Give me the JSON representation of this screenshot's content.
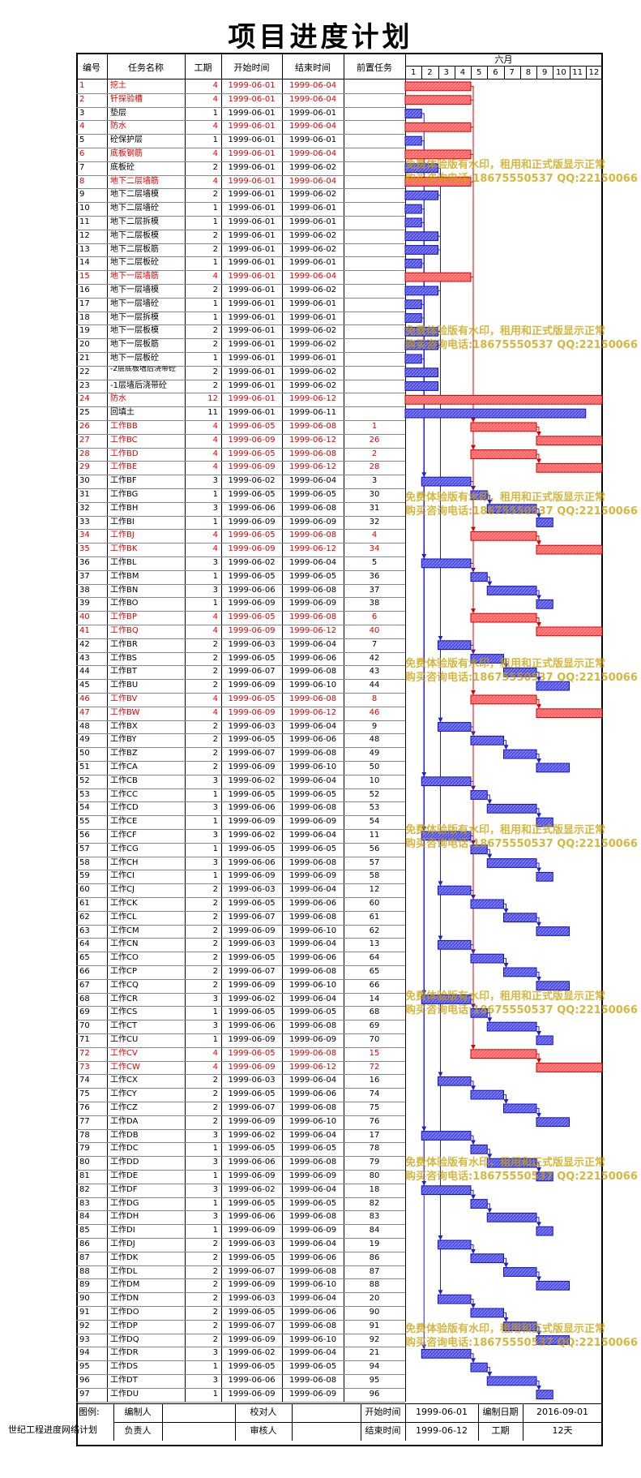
{
  "title": "项目进度计划",
  "headers": {
    "id": "编号",
    "name": "任务名称",
    "duration": "工期",
    "start": "开始时间",
    "end": "结束时间",
    "pred": "前置任务",
    "month": "六月",
    "days": [
      "1",
      "2",
      "3",
      "4",
      "5",
      "6",
      "7",
      "8",
      "9",
      "10",
      "11",
      "12"
    ]
  },
  "footer": {
    "legend_label": "图例:",
    "compiler_label": "编制人",
    "checker_label": "校对人",
    "start_label": "开始时间",
    "start_value": "1999-06-01",
    "compile_date_label": "编制日期",
    "compile_date_value": "2016-09-01",
    "responsible_label": "负责人",
    "reviewer_label": "审核人",
    "end_label": "结束时间",
    "end_value": "1999-06-12",
    "duration_label": "工期",
    "duration_value": "12天",
    "side_label": "世纪工程进度网络计划"
  },
  "watermark": {
    "line1": "免费体验版有水印，租用和正式版显示正常",
    "line2": "购买咨询电话:18675550537 QQ:22150066"
  },
  "colors": {
    "critical": "#ff6060",
    "normal": "#5050e8",
    "critical_text": "#e00000"
  },
  "chart_data": {
    "type": "gantt",
    "title": "项目进度计划",
    "x_axis": {
      "label": "六月",
      "ticks": [
        "1",
        "2",
        "3",
        "4",
        "5",
        "6",
        "7",
        "8",
        "9",
        "10",
        "11",
        "12"
      ]
    },
    "tasks": [
      {
        "id": "1",
        "name": "挖土",
        "dur": 4,
        "start": "1999-06-01",
        "end": "1999-06-04",
        "pred": "",
        "critical": true
      },
      {
        "id": "2",
        "name": "钎探验槽",
        "dur": 4,
        "start": "1999-06-01",
        "end": "1999-06-04",
        "pred": "",
        "critical": true
      },
      {
        "id": "3",
        "name": "垫层",
        "dur": 1,
        "start": "1999-06-01",
        "end": "1999-06-01",
        "pred": "",
        "critical": false
      },
      {
        "id": "4",
        "name": "防水",
        "dur": 4,
        "start": "1999-06-01",
        "end": "1999-06-04",
        "pred": "",
        "critical": true
      },
      {
        "id": "5",
        "name": "砼保护层",
        "dur": 1,
        "start": "1999-06-01",
        "end": "1999-06-01",
        "pred": "",
        "critical": false
      },
      {
        "id": "6",
        "name": "底板钢筋",
        "dur": 4,
        "start": "1999-06-01",
        "end": "1999-06-04",
        "pred": "",
        "critical": true
      },
      {
        "id": "7",
        "name": "底板砼",
        "dur": 2,
        "start": "1999-06-01",
        "end": "1999-06-02",
        "pred": "",
        "critical": false
      },
      {
        "id": "8",
        "name": "地下二层墙筋",
        "dur": 4,
        "start": "1999-06-01",
        "end": "1999-06-04",
        "pred": "",
        "critical": true
      },
      {
        "id": "9",
        "name": "地下二层墙模",
        "dur": 2,
        "start": "1999-06-01",
        "end": "1999-06-02",
        "pred": "",
        "critical": false
      },
      {
        "id": "10",
        "name": "地下二层墙砼",
        "dur": 1,
        "start": "1999-06-01",
        "end": "1999-06-01",
        "pred": "",
        "critical": false
      },
      {
        "id": "11",
        "name": "地下二层拆模",
        "dur": 1,
        "start": "1999-06-01",
        "end": "1999-06-01",
        "pred": "",
        "critical": false
      },
      {
        "id": "12",
        "name": "地下二层板模",
        "dur": 2,
        "start": "1999-06-01",
        "end": "1999-06-02",
        "pred": "",
        "critical": false
      },
      {
        "id": "13",
        "name": "地下二层板筋",
        "dur": 2,
        "start": "1999-06-01",
        "end": "1999-06-02",
        "pred": "",
        "critical": false
      },
      {
        "id": "14",
        "name": "地下二层板砼",
        "dur": 1,
        "start": "1999-06-01",
        "end": "1999-06-01",
        "pred": "",
        "critical": false
      },
      {
        "id": "15",
        "name": "地下一层墙筋",
        "dur": 4,
        "start": "1999-06-01",
        "end": "1999-06-04",
        "pred": "",
        "critical": true
      },
      {
        "id": "16",
        "name": "地下一层墙模",
        "dur": 2,
        "start": "1999-06-01",
        "end": "1999-06-02",
        "pred": "",
        "critical": false
      },
      {
        "id": "17",
        "name": "地下一层墙砼",
        "dur": 1,
        "start": "1999-06-01",
        "end": "1999-06-01",
        "pred": "",
        "critical": false
      },
      {
        "id": "18",
        "name": "地下一层拆模",
        "dur": 1,
        "start": "1999-06-01",
        "end": "1999-06-01",
        "pred": "",
        "critical": false
      },
      {
        "id": "19",
        "name": "地下一层板模",
        "dur": 2,
        "start": "1999-06-01",
        "end": "1999-06-02",
        "pred": "",
        "critical": false
      },
      {
        "id": "20",
        "name": "地下一层板筋",
        "dur": 2,
        "start": "1999-06-01",
        "end": "1999-06-02",
        "pred": "",
        "critical": false
      },
      {
        "id": "21",
        "name": "地下一层板砼",
        "dur": 1,
        "start": "1999-06-01",
        "end": "1999-06-01",
        "pred": "",
        "critical": false
      },
      {
        "id": "22",
        "name": "-2层底板墙后浇带砼",
        "dur": 2,
        "start": "1999-06-01",
        "end": "1999-06-02",
        "pred": "",
        "critical": false
      },
      {
        "id": "23",
        "name": "-1层墙后浇带砼",
        "dur": 2,
        "start": "1999-06-01",
        "end": "1999-06-02",
        "pred": "",
        "critical": false
      },
      {
        "id": "24",
        "name": "防水",
        "dur": 12,
        "start": "1999-06-01",
        "end": "1999-06-12",
        "pred": "",
        "critical": true
      },
      {
        "id": "25",
        "name": "回填土",
        "dur": 11,
        "start": "1999-06-01",
        "end": "1999-06-11",
        "pred": "",
        "critical": false
      },
      {
        "id": "26",
        "name": "工作BB",
        "dur": 4,
        "start": "1999-06-05",
        "end": "1999-06-08",
        "pred": "1",
        "critical": true
      },
      {
        "id": "27",
        "name": "工作BC",
        "dur": 4,
        "start": "1999-06-09",
        "end": "1999-06-12",
        "pred": "26",
        "critical": true
      },
      {
        "id": "28",
        "name": "工作BD",
        "dur": 4,
        "start": "1999-06-05",
        "end": "1999-06-08",
        "pred": "2",
        "critical": true
      },
      {
        "id": "29",
        "name": "工作BE",
        "dur": 4,
        "start": "1999-06-09",
        "end": "1999-06-12",
        "pred": "28",
        "critical": true
      },
      {
        "id": "30",
        "name": "工作BF",
        "dur": 3,
        "start": "1999-06-02",
        "end": "1999-06-04",
        "pred": "3",
        "critical": false
      },
      {
        "id": "31",
        "name": "工作BG",
        "dur": 1,
        "start": "1999-06-05",
        "end": "1999-06-05",
        "pred": "30",
        "critical": false
      },
      {
        "id": "32",
        "name": "工作BH",
        "dur": 3,
        "start": "1999-06-06",
        "end": "1999-06-08",
        "pred": "31",
        "critical": false
      },
      {
        "id": "33",
        "name": "工作BI",
        "dur": 1,
        "start": "1999-06-09",
        "end": "1999-06-09",
        "pred": "32",
        "critical": false
      },
      {
        "id": "34",
        "name": "工作BJ",
        "dur": 4,
        "start": "1999-06-05",
        "end": "1999-06-08",
        "pred": "4",
        "critical": true
      },
      {
        "id": "35",
        "name": "工作BK",
        "dur": 4,
        "start": "1999-06-09",
        "end": "1999-06-12",
        "pred": "34",
        "critical": true
      },
      {
        "id": "36",
        "name": "工作BL",
        "dur": 3,
        "start": "1999-06-02",
        "end": "1999-06-04",
        "pred": "5",
        "critical": false
      },
      {
        "id": "37",
        "name": "工作BM",
        "dur": 1,
        "start": "1999-06-05",
        "end": "1999-06-05",
        "pred": "36",
        "critical": false
      },
      {
        "id": "38",
        "name": "工作BN",
        "dur": 3,
        "start": "1999-06-06",
        "end": "1999-06-08",
        "pred": "37",
        "critical": false
      },
      {
        "id": "39",
        "name": "工作BO",
        "dur": 1,
        "start": "1999-06-09",
        "end": "1999-06-09",
        "pred": "38",
        "critical": false
      },
      {
        "id": "40",
        "name": "工作BP",
        "dur": 4,
        "start": "1999-06-05",
        "end": "1999-06-08",
        "pred": "6",
        "critical": true
      },
      {
        "id": "41",
        "name": "工作BQ",
        "dur": 4,
        "start": "1999-06-09",
        "end": "1999-06-12",
        "pred": "40",
        "critical": true
      },
      {
        "id": "42",
        "name": "工作BR",
        "dur": 2,
        "start": "1999-06-03",
        "end": "1999-06-04",
        "pred": "7",
        "critical": false
      },
      {
        "id": "43",
        "name": "工作BS",
        "dur": 2,
        "start": "1999-06-05",
        "end": "1999-06-06",
        "pred": "42",
        "critical": false
      },
      {
        "id": "44",
        "name": "工作BT",
        "dur": 2,
        "start": "1999-06-07",
        "end": "1999-06-08",
        "pred": "43",
        "critical": false
      },
      {
        "id": "45",
        "name": "工作BU",
        "dur": 2,
        "start": "1999-06-09",
        "end": "1999-06-10",
        "pred": "44",
        "critical": false
      },
      {
        "id": "46",
        "name": "工作BV",
        "dur": 4,
        "start": "1999-06-05",
        "end": "1999-06-08",
        "pred": "8",
        "critical": true
      },
      {
        "id": "47",
        "name": "工作BW",
        "dur": 4,
        "start": "1999-06-09",
        "end": "1999-06-12",
        "pred": "46",
        "critical": true
      },
      {
        "id": "48",
        "name": "工作BX",
        "dur": 2,
        "start": "1999-06-03",
        "end": "1999-06-04",
        "pred": "9",
        "critical": false
      },
      {
        "id": "49",
        "name": "工作BY",
        "dur": 2,
        "start": "1999-06-05",
        "end": "1999-06-06",
        "pred": "48",
        "critical": false
      },
      {
        "id": "50",
        "name": "工作BZ",
        "dur": 2,
        "start": "1999-06-07",
        "end": "1999-06-08",
        "pred": "49",
        "critical": false
      },
      {
        "id": "51",
        "name": "工作CA",
        "dur": 2,
        "start": "1999-06-09",
        "end": "1999-06-10",
        "pred": "50",
        "critical": false
      },
      {
        "id": "52",
        "name": "工作CB",
        "dur": 3,
        "start": "1999-06-02",
        "end": "1999-06-04",
        "pred": "10",
        "critical": false
      },
      {
        "id": "53",
        "name": "工作CC",
        "dur": 1,
        "start": "1999-06-05",
        "end": "1999-06-05",
        "pred": "52",
        "critical": false
      },
      {
        "id": "54",
        "name": "工作CD",
        "dur": 3,
        "start": "1999-06-06",
        "end": "1999-06-08",
        "pred": "53",
        "critical": false
      },
      {
        "id": "55",
        "name": "工作CE",
        "dur": 1,
        "start": "1999-06-09",
        "end": "1999-06-09",
        "pred": "54",
        "critical": false
      },
      {
        "id": "56",
        "name": "工作CF",
        "dur": 3,
        "start": "1999-06-02",
        "end": "1999-06-04",
        "pred": "11",
        "critical": false
      },
      {
        "id": "57",
        "name": "工作CG",
        "dur": 1,
        "start": "1999-06-05",
        "end": "1999-06-05",
        "pred": "56",
        "critical": false
      },
      {
        "id": "58",
        "name": "工作CH",
        "dur": 3,
        "start": "1999-06-06",
        "end": "1999-06-08",
        "pred": "57",
        "critical": false
      },
      {
        "id": "59",
        "name": "工作CI",
        "dur": 1,
        "start": "1999-06-09",
        "end": "1999-06-09",
        "pred": "58",
        "critical": false
      },
      {
        "id": "60",
        "name": "工作CJ",
        "dur": 2,
        "start": "1999-06-03",
        "end": "1999-06-04",
        "pred": "12",
        "critical": false
      },
      {
        "id": "61",
        "name": "工作CK",
        "dur": 2,
        "start": "1999-06-05",
        "end": "1999-06-06",
        "pred": "60",
        "critical": false
      },
      {
        "id": "62",
        "name": "工作CL",
        "dur": 2,
        "start": "1999-06-07",
        "end": "1999-06-08",
        "pred": "61",
        "critical": false
      },
      {
        "id": "63",
        "name": "工作CM",
        "dur": 2,
        "start": "1999-06-09",
        "end": "1999-06-10",
        "pred": "62",
        "critical": false
      },
      {
        "id": "64",
        "name": "工作CN",
        "dur": 2,
        "start": "1999-06-03",
        "end": "1999-06-04",
        "pred": "13",
        "critical": false
      },
      {
        "id": "65",
        "name": "工作CO",
        "dur": 2,
        "start": "1999-06-05",
        "end": "1999-06-06",
        "pred": "64",
        "critical": false
      },
      {
        "id": "66",
        "name": "工作CP",
        "dur": 2,
        "start": "1999-06-07",
        "end": "1999-06-08",
        "pred": "65",
        "critical": false
      },
      {
        "id": "67",
        "name": "工作CQ",
        "dur": 2,
        "start": "1999-06-09",
        "end": "1999-06-10",
        "pred": "66",
        "critical": false
      },
      {
        "id": "68",
        "name": "工作CR",
        "dur": 3,
        "start": "1999-06-02",
        "end": "1999-06-04",
        "pred": "14",
        "critical": false
      },
      {
        "id": "69",
        "name": "工作CS",
        "dur": 1,
        "start": "1999-06-05",
        "end": "1999-06-05",
        "pred": "68",
        "critical": false
      },
      {
        "id": "70",
        "name": "工作CT",
        "dur": 3,
        "start": "1999-06-06",
        "end": "1999-06-08",
        "pred": "69",
        "critical": false
      },
      {
        "id": "71",
        "name": "工作CU",
        "dur": 1,
        "start": "1999-06-09",
        "end": "1999-06-09",
        "pred": "70",
        "critical": false
      },
      {
        "id": "72",
        "name": "工作CV",
        "dur": 4,
        "start": "1999-06-05",
        "end": "1999-06-08",
        "pred": "15",
        "critical": true
      },
      {
        "id": "73",
        "name": "工作CW",
        "dur": 4,
        "start": "1999-06-09",
        "end": "1999-06-12",
        "pred": "72",
        "critical": true
      },
      {
        "id": "74",
        "name": "工作CX",
        "dur": 2,
        "start": "1999-06-03",
        "end": "1999-06-04",
        "pred": "16",
        "critical": false
      },
      {
        "id": "75",
        "name": "工作CY",
        "dur": 2,
        "start": "1999-06-05",
        "end": "1999-06-06",
        "pred": "74",
        "critical": false
      },
      {
        "id": "76",
        "name": "工作CZ",
        "dur": 2,
        "start": "1999-06-07",
        "end": "1999-06-08",
        "pred": "75",
        "critical": false
      },
      {
        "id": "77",
        "name": "工作DA",
        "dur": 2,
        "start": "1999-06-09",
        "end": "1999-06-10",
        "pred": "76",
        "critical": false
      },
      {
        "id": "78",
        "name": "工作DB",
        "dur": 3,
        "start": "1999-06-02",
        "end": "1999-06-04",
        "pred": "17",
        "critical": false
      },
      {
        "id": "79",
        "name": "工作DC",
        "dur": 1,
        "start": "1999-06-05",
        "end": "1999-06-05",
        "pred": "78",
        "critical": false
      },
      {
        "id": "80",
        "name": "工作DD",
        "dur": 3,
        "start": "1999-06-06",
        "end": "1999-06-08",
        "pred": "79",
        "critical": false
      },
      {
        "id": "81",
        "name": "工作DE",
        "dur": 1,
        "start": "1999-06-09",
        "end": "1999-06-09",
        "pred": "80",
        "critical": false
      },
      {
        "id": "82",
        "name": "工作DF",
        "dur": 3,
        "start": "1999-06-02",
        "end": "1999-06-04",
        "pred": "18",
        "critical": false
      },
      {
        "id": "83",
        "name": "工作DG",
        "dur": 1,
        "start": "1999-06-05",
        "end": "1999-06-05",
        "pred": "82",
        "critical": false
      },
      {
        "id": "84",
        "name": "工作DH",
        "dur": 3,
        "start": "1999-06-06",
        "end": "1999-06-08",
        "pred": "83",
        "critical": false
      },
      {
        "id": "85",
        "name": "工作DI",
        "dur": 1,
        "start": "1999-06-09",
        "end": "1999-06-09",
        "pred": "84",
        "critical": false
      },
      {
        "id": "86",
        "name": "工作DJ",
        "dur": 2,
        "start": "1999-06-03",
        "end": "1999-06-04",
        "pred": "19",
        "critical": false
      },
      {
        "id": "87",
        "name": "工作DK",
        "dur": 2,
        "start": "1999-06-05",
        "end": "1999-06-06",
        "pred": "86",
        "critical": false
      },
      {
        "id": "88",
        "name": "工作DL",
        "dur": 2,
        "start": "1999-06-07",
        "end": "1999-06-08",
        "pred": "87",
        "critical": false
      },
      {
        "id": "89",
        "name": "工作DM",
        "dur": 2,
        "start": "1999-06-09",
        "end": "1999-06-10",
        "pred": "88",
        "critical": false
      },
      {
        "id": "90",
        "name": "工作DN",
        "dur": 2,
        "start": "1999-06-03",
        "end": "1999-06-04",
        "pred": "20",
        "critical": false
      },
      {
        "id": "91",
        "name": "工作DO",
        "dur": 2,
        "start": "1999-06-05",
        "end": "1999-06-06",
        "pred": "90",
        "critical": false
      },
      {
        "id": "92",
        "name": "工作DP",
        "dur": 2,
        "start": "1999-06-07",
        "end": "1999-06-08",
        "pred": "91",
        "critical": false
      },
      {
        "id": "93",
        "name": "工作DQ",
        "dur": 2,
        "start": "1999-06-09",
        "end": "1999-06-10",
        "pred": "92",
        "critical": false
      },
      {
        "id": "94",
        "name": "工作DR",
        "dur": 3,
        "start": "1999-06-02",
        "end": "1999-06-04",
        "pred": "21",
        "critical": false
      },
      {
        "id": "95",
        "name": "工作DS",
        "dur": 1,
        "start": "1999-06-05",
        "end": "1999-06-05",
        "pred": "94",
        "critical": false
      },
      {
        "id": "96",
        "name": "工作DT",
        "dur": 3,
        "start": "1999-06-06",
        "end": "1999-06-08",
        "pred": "95",
        "critical": false
      },
      {
        "id": "97",
        "name": "工作DU",
        "dur": 1,
        "start": "1999-06-09",
        "end": "1999-06-09",
        "pred": "96",
        "critical": false
      }
    ]
  }
}
